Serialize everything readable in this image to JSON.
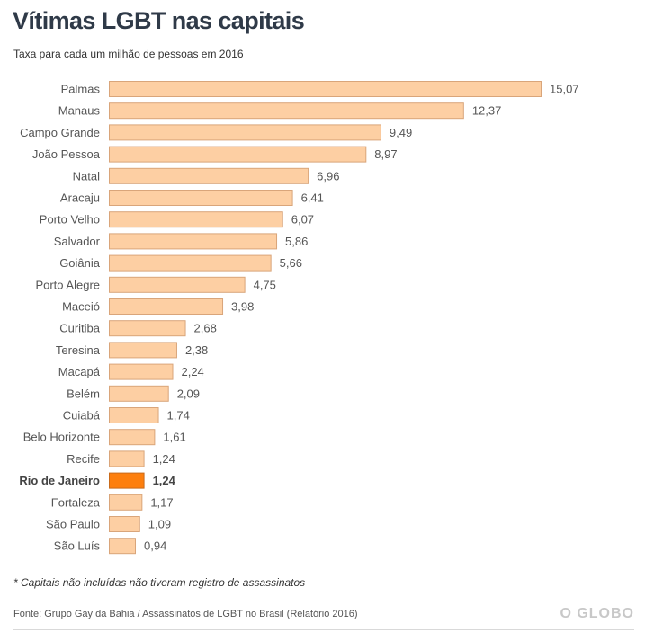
{
  "header": {
    "title": "Vítimas LGBT nas capitais",
    "subtitle": "Taxa para cada um milhão de pessoas em 2016"
  },
  "footer": {
    "footnote": "* Capitais não incluídas não tiveram registro de assassinatos",
    "source": "Fonte: Grupo Gay da Bahia / Assassinatos de LGBT no Brasil (Relatório 2016)",
    "brand": "O GLOBO"
  },
  "colors": {
    "bar_fill": "#fdcfa3",
    "bar_stroke": "#d9a57a",
    "highlight_fill": "#fd7f0e",
    "highlight_stroke": "#c96a1a"
  },
  "chart_data": {
    "type": "bar",
    "orientation": "horizontal",
    "title": "Vítimas LGBT nas capitais",
    "subtitle": "Taxa para cada um milhão de pessoas em 2016",
    "xlabel": "",
    "ylabel": "",
    "grid": false,
    "legend": "none",
    "categories": [
      "Palmas",
      "Manaus",
      "Campo Grande",
      "João Pessoa",
      "Natal",
      "Aracaju",
      "Porto Velho",
      "Salvador",
      "Goiânia",
      "Porto Alegre",
      "Maceió",
      "Curitiba",
      "Teresina",
      "Macapá",
      "Belém",
      "Cuiabá",
      "Belo Horizonte",
      "Recife",
      "Rio de Janeiro",
      "Fortaleza",
      "São Paulo",
      "São Luís"
    ],
    "values": [
      15.07,
      12.37,
      9.49,
      8.97,
      6.96,
      6.41,
      6.07,
      5.86,
      5.66,
      4.75,
      3.98,
      2.68,
      2.38,
      2.24,
      2.09,
      1.74,
      1.61,
      1.24,
      1.24,
      1.17,
      1.09,
      0.94
    ],
    "value_labels": [
      "15,07",
      "12,37",
      "9,49",
      "8,97",
      "6,96",
      "6,41",
      "6,07",
      "5,86",
      "5,66",
      "4,75",
      "3,98",
      "2,68",
      "2,38",
      "2,24",
      "2,09",
      "1,74",
      "1,61",
      "1,24",
      "1,24",
      "1,17",
      "1,09",
      "0,94"
    ],
    "highlight": "Rio de Janeiro",
    "xlim": [
      0,
      15.07
    ]
  }
}
